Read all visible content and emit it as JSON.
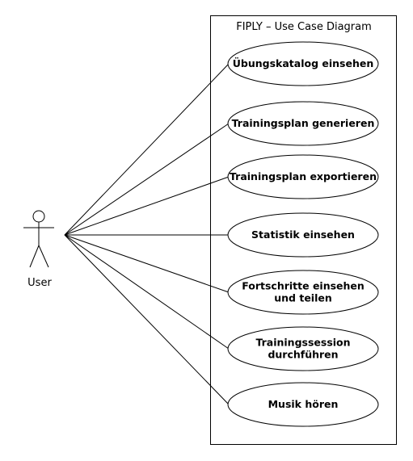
{
  "diagram": {
    "title": "FIPLY – Use Case Diagram",
    "actor": {
      "label": "User"
    },
    "use_cases": [
      {
        "lines": [
          "Übungskatalog einsehen"
        ]
      },
      {
        "lines": [
          "Trainingsplan generieren"
        ]
      },
      {
        "lines": [
          "Trainingsplan exportieren"
        ]
      },
      {
        "lines": [
          "Statistik einsehen"
        ]
      },
      {
        "lines": [
          "Fortschritte einsehen",
          "und teilen"
        ]
      },
      {
        "lines": [
          "Trainingssession",
          "durchführen"
        ]
      },
      {
        "lines": [
          "Musik hören"
        ]
      }
    ]
  }
}
